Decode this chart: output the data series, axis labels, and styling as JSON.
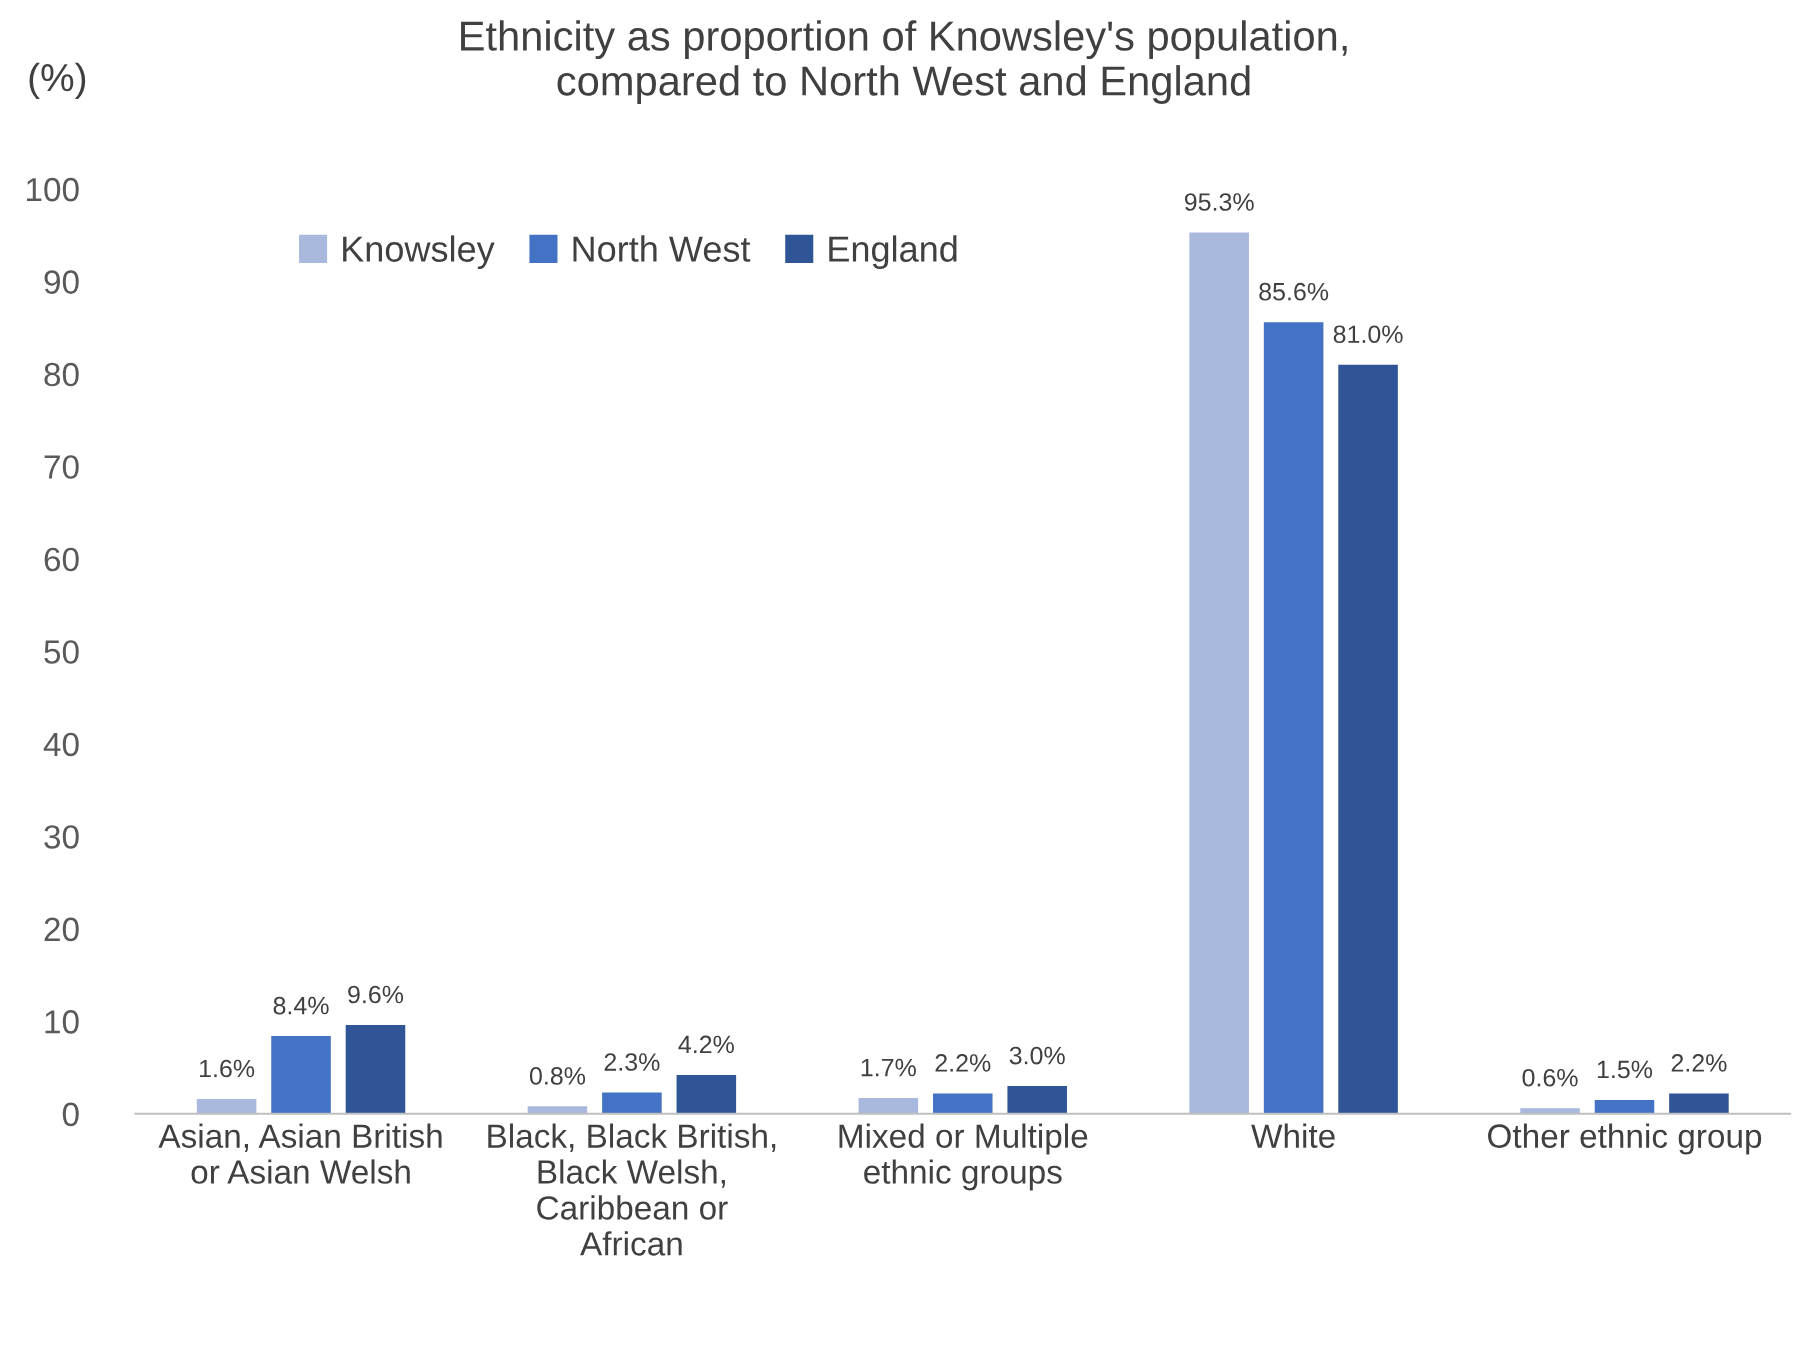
{
  "chart_data": {
    "type": "bar",
    "title": "Ethnicity as proportion of Knowsley's population,\ncompared to North West and England",
    "ylabel": "(%)",
    "categories": [
      "Asian, Asian British\nor Asian Welsh",
      "Black, Black British,\nBlack Welsh,\nCaribbean or\nAfrican",
      "Mixed or Multiple\nethnic groups",
      "White",
      "Other ethnic group"
    ],
    "series": [
      {
        "name": "Knowsley",
        "color": "#a9b9dd",
        "values": [
          1.6,
          0.8,
          1.7,
          95.3,
          0.6
        ],
        "value_labels": [
          "1.6%",
          "0.8%",
          "1.7%",
          "95.3%",
          "0.6%"
        ]
      },
      {
        "name": "North West",
        "color": "#4472c4",
        "values": [
          8.4,
          2.3,
          2.2,
          85.6,
          1.5
        ],
        "value_labels": [
          "8.4%",
          "2.3%",
          "2.2%",
          "85.6%",
          "1.5%"
        ]
      },
      {
        "name": "England",
        "color": "#2f5597",
        "values": [
          9.6,
          4.2,
          3.0,
          81.0,
          2.2
        ],
        "value_labels": [
          "9.6%",
          "4.2%",
          "3.0%",
          "81.0%",
          "2.2%"
        ]
      }
    ],
    "ylim": [
      0,
      100
    ],
    "yticks": [
      0,
      10,
      20,
      30,
      40,
      50,
      60,
      70,
      80,
      90,
      100
    ],
    "grid": false,
    "legend": "top left"
  }
}
